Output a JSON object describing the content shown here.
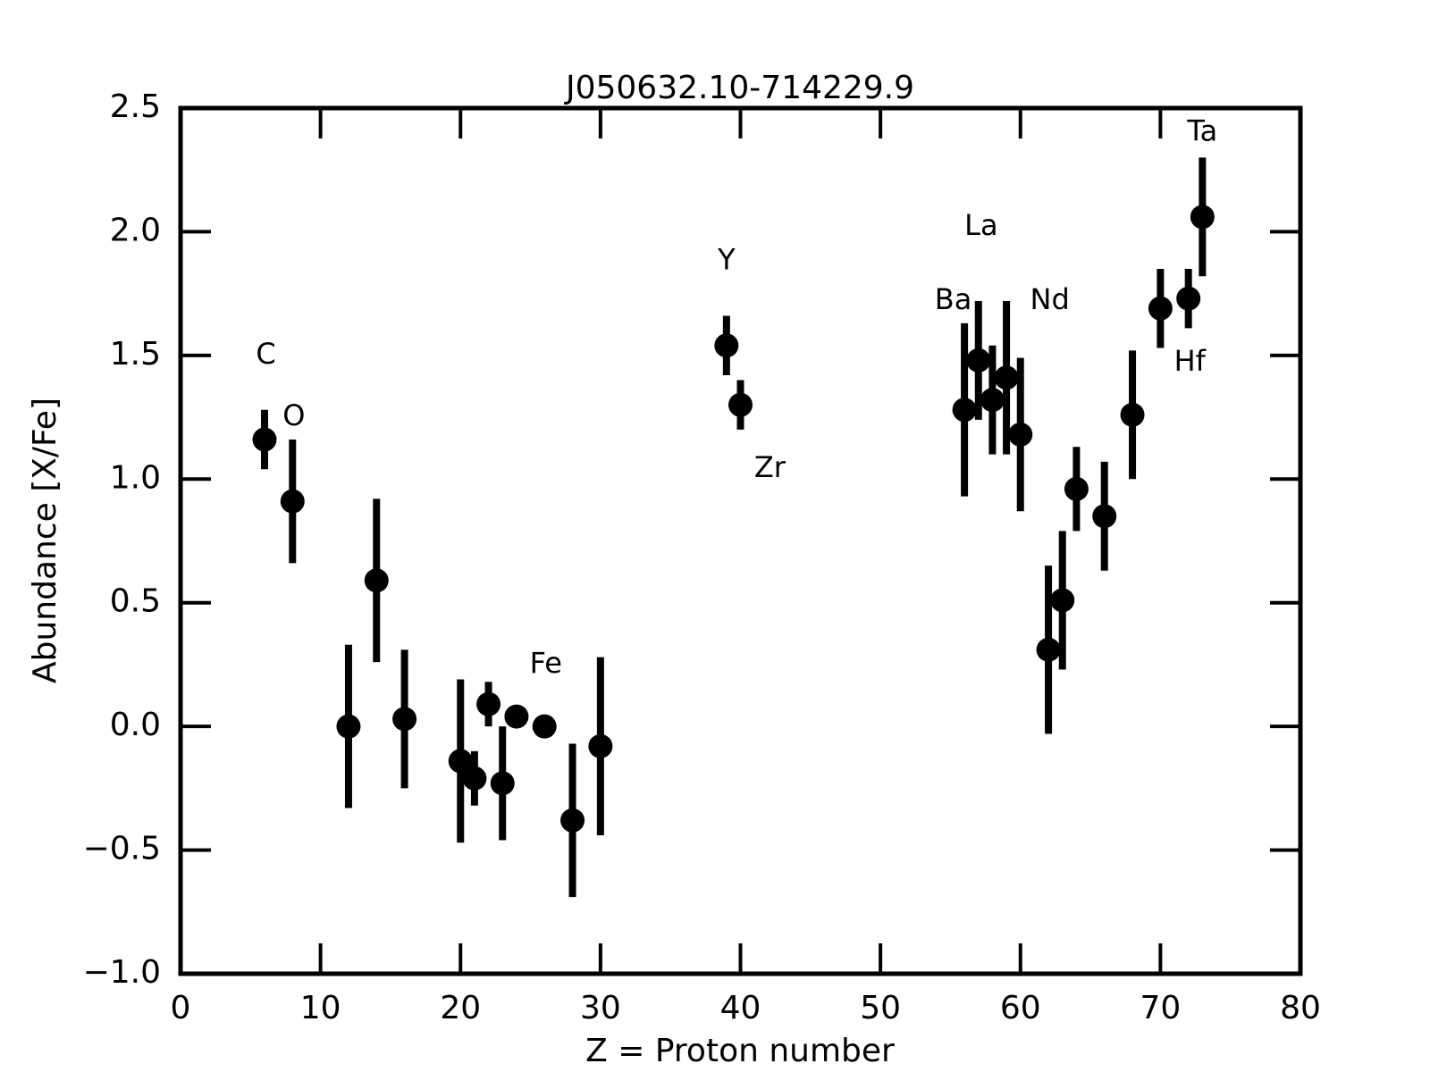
{
  "chart_data": {
    "type": "scatter",
    "title": "J050632.10-714229.9",
    "xlabel": "Z = Proton number",
    "ylabel": "Abundance [X/Fe]",
    "x": [
      6,
      8,
      12,
      14,
      16,
      20,
      21,
      22,
      23,
      24,
      26,
      28,
      30,
      39,
      40,
      56,
      57,
      58,
      59,
      60,
      62,
      63,
      64,
      66,
      68,
      70,
      72,
      73
    ],
    "values": [
      1.16,
      0.91,
      0.0,
      0.59,
      0.03,
      -0.14,
      -0.21,
      0.09,
      -0.23,
      0.04,
      0.0,
      -0.38,
      -0.08,
      1.54,
      1.3,
      1.28,
      1.48,
      1.32,
      1.41,
      1.18,
      0.31,
      0.51,
      0.96,
      0.85,
      1.26,
      1.69,
      1.73,
      2.06
    ],
    "errors": [
      0.12,
      0.25,
      0.33,
      0.33,
      0.28,
      0.33,
      0.11,
      0.09,
      0.23,
      0,
      0,
      0.31,
      0.36,
      0.12,
      0.1,
      0.35,
      0.24,
      0.22,
      0.31,
      0.31,
      0.34,
      0.28,
      0.17,
      0.22,
      0.26,
      0.16,
      0.12,
      0.24
    ],
    "color": "#000000",
    "annotations": [
      {
        "text": "C",
        "x": 6.1,
        "y": 1.5
      },
      {
        "text": "O",
        "x": 8.1,
        "y": 1.25
      },
      {
        "text": "Fe",
        "x": 26.1,
        "y": 0.25
      },
      {
        "text": "Y",
        "x": 39.0,
        "y": 1.88
      },
      {
        "text": "Zr",
        "x": 42.1,
        "y": 1.04
      },
      {
        "text": "Ba",
        "x": 55.2,
        "y": 1.72
      },
      {
        "text": "La",
        "x": 57.2,
        "y": 2.02
      },
      {
        "text": "Nd",
        "x": 62.1,
        "y": 1.72
      },
      {
        "text": "Hf",
        "x": 72.1,
        "y": 1.47
      },
      {
        "text": "Ta",
        "x": 73.0,
        "y": 2.4
      }
    ],
    "xlim": [
      0,
      80
    ],
    "ylim": [
      -1.0,
      2.5
    ],
    "xticks": [
      0,
      10,
      20,
      30,
      40,
      50,
      60,
      70,
      80
    ],
    "yticks": [
      {
        "value": -1.0,
        "label": "−1.0"
      },
      {
        "value": -0.5,
        "label": "−0.5"
      },
      {
        "value": 0.0,
        "label": "0.0"
      },
      0.5,
      {
        "value": 1.0,
        "label": "1.0"
      },
      1.5,
      {
        "value": 2.0,
        "label": "2.0"
      },
      2.5
    ],
    "grid": false
  }
}
